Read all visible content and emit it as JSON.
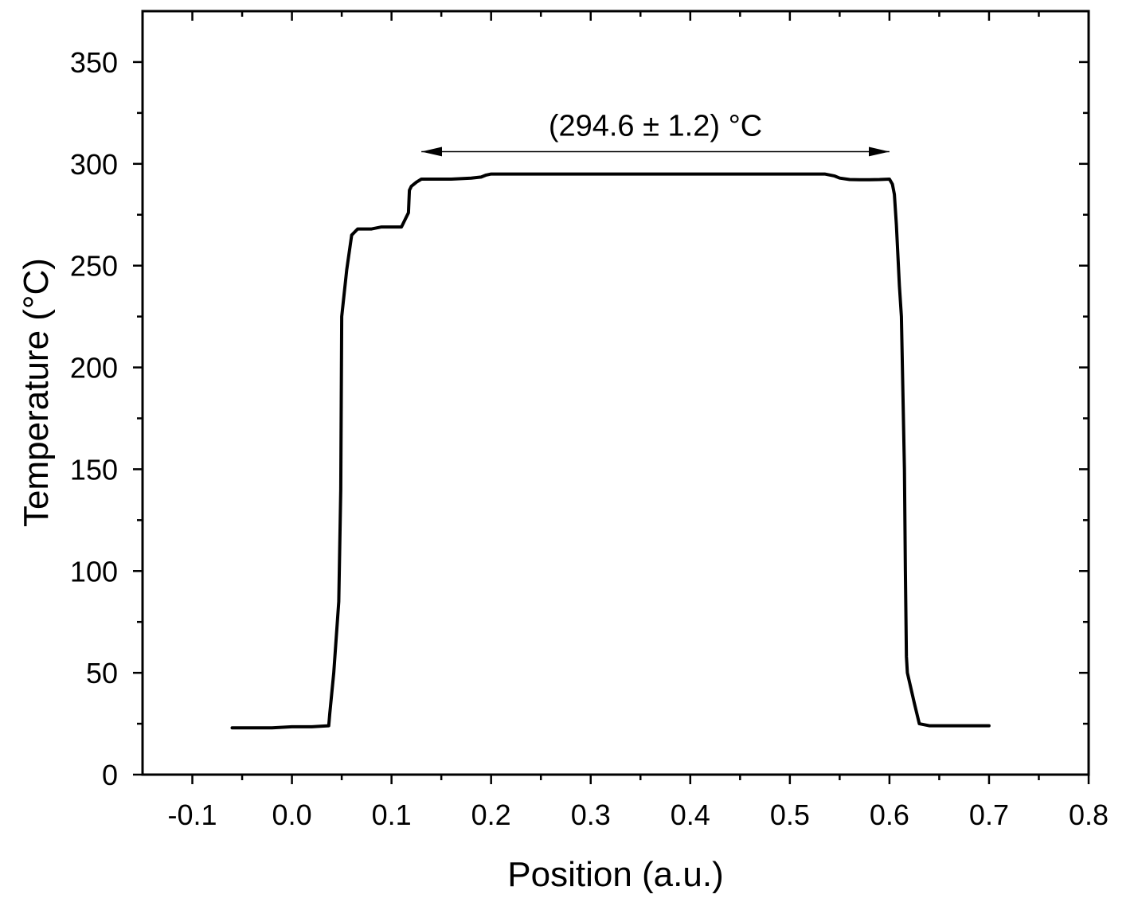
{
  "chart_data": {
    "type": "line",
    "xlabel": "Position (a.u.)",
    "ylabel": "Temperature (°C)",
    "xlim": [
      -0.15,
      0.8
    ],
    "ylim": [
      0,
      375
    ],
    "xticks": [
      -0.1,
      0.0,
      0.1,
      0.2,
      0.3,
      0.4,
      0.5,
      0.6,
      0.7,
      0.8
    ],
    "xtick_labels": [
      "-0.1",
      "0.0",
      "0.1",
      "0.2",
      "0.3",
      "0.4",
      "0.5",
      "0.6",
      "0.7",
      "0.8"
    ],
    "yticks": [
      0,
      50,
      100,
      150,
      200,
      250,
      300,
      350
    ],
    "ytick_labels": [
      "0",
      "50",
      "100",
      "150",
      "200",
      "250",
      "300",
      "350"
    ],
    "grid": false,
    "legend": "none",
    "annotation": {
      "text": "(294.6 ± 1.2) °C",
      "arrow_x_start": 0.13,
      "arrow_x_end": 0.6,
      "arrow_y": 306
    },
    "series": [
      {
        "color": "#000000",
        "x": [
          -0.06,
          -0.02,
          0.0,
          0.02,
          0.037,
          0.038,
          0.042,
          0.047,
          0.049,
          0.05,
          0.055,
          0.06,
          0.066,
          0.07,
          0.08,
          0.09,
          0.1,
          0.11,
          0.113,
          0.115,
          0.117,
          0.118,
          0.12,
          0.125,
          0.13,
          0.14,
          0.16,
          0.18,
          0.19,
          0.195,
          0.2,
          0.25,
          0.3,
          0.35,
          0.4,
          0.45,
          0.5,
          0.535,
          0.545,
          0.55,
          0.56,
          0.57,
          0.58,
          0.59,
          0.6,
          0.603,
          0.605,
          0.607,
          0.61,
          0.612,
          0.615,
          0.616,
          0.617,
          0.618,
          0.625,
          0.63,
          0.64,
          0.65,
          0.67,
          0.7
        ],
        "y": [
          23,
          23,
          23.5,
          23.5,
          24,
          30,
          50,
          85,
          140,
          225,
          248,
          265,
          268,
          268,
          268,
          269,
          269,
          269,
          272,
          274,
          276,
          287,
          289,
          291,
          292.5,
          292.5,
          292.5,
          293,
          293.5,
          294.5,
          295,
          295,
          295,
          295,
          295,
          295,
          295,
          295,
          294,
          293,
          292.3,
          292.2,
          292.2,
          292.3,
          292.5,
          290,
          285,
          270,
          240,
          225,
          150,
          100,
          58,
          50,
          35,
          25,
          24,
          24,
          24,
          24
        ]
      }
    ]
  }
}
